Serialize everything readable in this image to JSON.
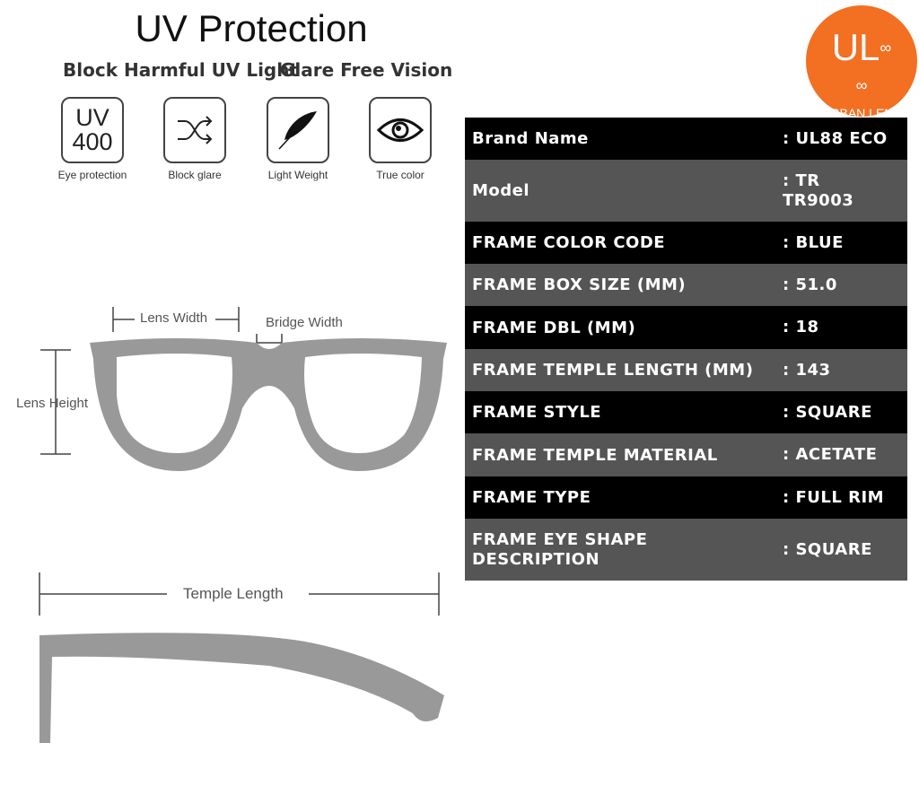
{
  "header": {
    "title": "UV Protection",
    "subtitle_left": "Block Harmful UV Light",
    "subtitle_right": "Glare Free Vision"
  },
  "features": [
    {
      "icon": "uv400-icon",
      "icon_text_1": "UV",
      "icon_text_2": "400",
      "caption": "Eye protection"
    },
    {
      "icon": "shuffle-arrows-icon",
      "caption": "Block glare"
    },
    {
      "icon": "feather-icon",
      "caption": "Light Weight"
    },
    {
      "icon": "eye-icon",
      "caption": "True color"
    }
  ],
  "logo": {
    "mark": "UL",
    "name": "URBAN LENS",
    "color": "#f36f21"
  },
  "diagram": {
    "lens_width": "Lens Width",
    "bridge_width": "Bridge Width",
    "lens_height": "Lens Height",
    "temple_length": "Temple Length"
  },
  "specs": [
    {
      "key": "Brand Name",
      "value": ": UL88 ECO"
    },
    {
      "key": "Model",
      "value": ": TR TR9003"
    },
    {
      "key": "FRAME COLOR CODE",
      "value": ": BLUE"
    },
    {
      "key": "FRAME BOX SIZE (MM)",
      "value": ": 51.0"
    },
    {
      "key": "FRAME DBL (MM)",
      "value": ": 18"
    },
    {
      "key": "FRAME TEMPLE LENGTH (MM)",
      "value": ": 143"
    },
    {
      "key": "FRAME STYLE",
      "value": ": SQUARE"
    },
    {
      "key": "FRAME TEMPLE MATERIAL",
      "value": ": ACETATE"
    },
    {
      "key": "FRAME TYPE",
      "value": ": FULL RIM"
    },
    {
      "key": "FRAME EYE SHAPE DESCRIPTION",
      "value": ": SQUARE"
    }
  ]
}
